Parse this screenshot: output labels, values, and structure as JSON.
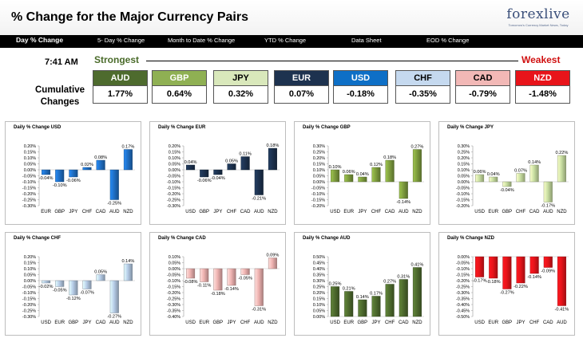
{
  "header": {
    "title": "% Change for the Major Currency Pairs",
    "logo_main": "forexlive",
    "logo_tagline": "Tomorrow's Currency Market News, Today"
  },
  "nav": {
    "items": [
      {
        "label": "Day % Change",
        "active": true
      },
      {
        "label": "5- Day % Change",
        "active": false
      },
      {
        "label": "Month to Date % Change",
        "active": false
      },
      {
        "label": "YTD % Change",
        "active": false
      },
      {
        "label": "Data Sheet",
        "active": false
      },
      {
        "label": "EOD % Change",
        "active": false
      }
    ]
  },
  "summary": {
    "time": "7:41 AM",
    "strongest_label": "Strongest",
    "weakest_label": "Weakest",
    "cumulative_label_line1": "Cumulative",
    "cumulative_label_line2": "Changes",
    "currencies": [
      {
        "code": "AUD",
        "value": "1.77%",
        "color": "#4e6b2e"
      },
      {
        "code": "GBP",
        "value": "0.64%",
        "color": "#8fb053"
      },
      {
        "code": "JPY",
        "value": "0.32%",
        "color": "#d9e8bb"
      },
      {
        "code": "EUR",
        "value": "0.07%",
        "color": "#1d324f"
      },
      {
        "code": "USD",
        "value": "-0.18%",
        "color": "#0e6fc6"
      },
      {
        "code": "CHF",
        "value": "-0.35%",
        "color": "#c5d9ef"
      },
      {
        "code": "CAD",
        "value": "-0.79%",
        "color": "#f2b8b6"
      },
      {
        "code": "NZD",
        "value": "-1.48%",
        "color": "#e8141a"
      }
    ]
  },
  "chart_data": [
    {
      "type": "bar",
      "title": "Daily % Change USD",
      "categories": [
        "EUR",
        "GBP",
        "JPY",
        "CHF",
        "CAD",
        "AUD",
        "NZD"
      ],
      "values": [
        -0.04,
        -0.1,
        -0.06,
        0.02,
        0.08,
        -0.25,
        0.17
      ],
      "labels": [
        "-0.04%",
        "-0.10%",
        "-0.06%",
        "0.02%",
        "0.08%",
        "-0.25%",
        "0.17%"
      ],
      "ylim": [
        -0.3,
        0.2
      ],
      "ticks": [
        0.2,
        0.15,
        0.1,
        0.05,
        0.0,
        -0.05,
        -0.1,
        -0.15,
        -0.2,
        -0.25,
        -0.3
      ],
      "tick_labels": [
        "0.20%",
        "0.15%",
        "0.10%",
        "0.05%",
        "0.00%",
        "-0.05%",
        "-0.10%",
        "-0.15%",
        "-0.20%",
        "-0.25%",
        "-0.30%"
      ],
      "color": "#1f6fc5"
    },
    {
      "type": "bar",
      "title": "Daily % Change EUR",
      "categories": [
        "USD",
        "GBP",
        "JPY",
        "CHF",
        "CAD",
        "AUD",
        "NZD"
      ],
      "values": [
        0.04,
        -0.06,
        -0.04,
        0.05,
        0.11,
        -0.21,
        0.18
      ],
      "labels": [
        "0.04%",
        "-0.06%",
        "-0.04%",
        "0.05%",
        "0.11%",
        "-0.21%",
        "0.18%"
      ],
      "ylim": [
        -0.3,
        0.2
      ],
      "ticks": [
        0.2,
        0.15,
        0.1,
        0.05,
        0.0,
        -0.05,
        -0.1,
        -0.15,
        -0.2,
        -0.25,
        -0.3
      ],
      "tick_labels": [
        "0.20%",
        "0.15%",
        "0.10%",
        "0.05%",
        "0.00%",
        "-0.05%",
        "-0.10%",
        "-0.15%",
        "-0.20%",
        "-0.25%",
        "-0.30%"
      ],
      "color": "#1d324f"
    },
    {
      "type": "bar",
      "title": "Daily % Change GBP",
      "categories": [
        "USD",
        "EUR",
        "JPY",
        "CHF",
        "CAD",
        "AUD",
        "NZD"
      ],
      "values": [
        0.1,
        0.06,
        0.04,
        0.12,
        0.18,
        -0.14,
        0.27
      ],
      "labels": [
        "0.10%",
        "0.06%",
        "0.04%",
        "0.12%",
        "0.18%",
        "-0.14%",
        "0.27%"
      ],
      "ylim": [
        -0.2,
        0.3
      ],
      "ticks": [
        0.3,
        0.25,
        0.2,
        0.15,
        0.1,
        0.05,
        0.0,
        -0.05,
        -0.1,
        -0.15,
        -0.2
      ],
      "tick_labels": [
        "0.30%",
        "0.25%",
        "0.20%",
        "0.15%",
        "0.10%",
        "0.05%",
        "0.00%",
        "-0.05%",
        "-0.10%",
        "-0.15%",
        "-0.20%"
      ],
      "color": "#7f9e3f"
    },
    {
      "type": "bar",
      "title": "Daily % Change JPY",
      "categories": [
        "USD",
        "EUR",
        "GBP",
        "CHF",
        "CAD",
        "AUD",
        "NZD"
      ],
      "values": [
        0.06,
        0.04,
        -0.04,
        0.07,
        0.14,
        -0.17,
        0.22
      ],
      "labels": [
        "0.06%",
        "0.04%",
        "-0.04%",
        "0.07%",
        "0.14%",
        "-0.17%",
        "0.22%"
      ],
      "ylim": [
        -0.2,
        0.3
      ],
      "ticks": [
        0.3,
        0.25,
        0.2,
        0.15,
        0.1,
        0.05,
        0.0,
        -0.05,
        -0.1,
        -0.15,
        -0.2
      ],
      "tick_labels": [
        "0.30%",
        "0.25%",
        "0.20%",
        "0.15%",
        "0.10%",
        "0.05%",
        "0.00%",
        "-0.05%",
        "-0.10%",
        "-0.15%",
        "-0.20%"
      ],
      "color": "#c9dfa2"
    },
    {
      "type": "bar",
      "title": "Daily % Change CHF",
      "categories": [
        "USD",
        "EUR",
        "GBP",
        "JPY",
        "CAD",
        "AUD",
        "NZD"
      ],
      "values": [
        -0.02,
        -0.05,
        -0.12,
        -0.07,
        0.05,
        -0.27,
        0.14
      ],
      "labels": [
        "-0.02%",
        "-0.05%",
        "-0.12%",
        "-0.07%",
        "0.05%",
        "-0.27%",
        "0.14%"
      ],
      "ylim": [
        -0.3,
        0.2
      ],
      "ticks": [
        0.2,
        0.15,
        0.1,
        0.05,
        0.0,
        -0.05,
        -0.1,
        -0.15,
        -0.2,
        -0.25,
        -0.3
      ],
      "tick_labels": [
        "0.20%",
        "0.15%",
        "0.10%",
        "0.05%",
        "0.00%",
        "-0.05%",
        "-0.10%",
        "-0.15%",
        "-0.20%",
        "-0.25%",
        "-0.30%"
      ],
      "color": "#b7cde8"
    },
    {
      "type": "bar",
      "title": "Daily % Change CAD",
      "categories": [
        "USD",
        "EUR",
        "GBP",
        "JPY",
        "CHF",
        "AUD",
        "NZD"
      ],
      "values": [
        -0.08,
        -0.11,
        -0.18,
        -0.14,
        -0.05,
        -0.31,
        0.09
      ],
      "labels": [
        "-0.08%",
        "-0.11%",
        "-0.18%",
        "-0.14%",
        "-0.05%",
        "-0.31%",
        "0.09%"
      ],
      "ylim": [
        -0.4,
        0.1
      ],
      "ticks": [
        0.1,
        0.05,
        0.0,
        -0.05,
        -0.1,
        -0.15,
        -0.2,
        -0.25,
        -0.3,
        -0.35,
        -0.4
      ],
      "tick_labels": [
        "0.10%",
        "0.05%",
        "0.00%",
        "-0.05%",
        "-0.10%",
        "-0.15%",
        "-0.20%",
        "-0.25%",
        "-0.30%",
        "-0.35%",
        "-0.40%"
      ],
      "color": "#efb3b1"
    },
    {
      "type": "bar",
      "title": "Daily % Change AUD",
      "categories": [
        "USD",
        "EUR",
        "GBP",
        "JPY",
        "CHF",
        "CAD",
        "NZD"
      ],
      "values": [
        0.25,
        0.21,
        0.14,
        0.17,
        0.27,
        0.31,
        0.41
      ],
      "labels": [
        "0.25%",
        "0.21%",
        "0.14%",
        "0.17%",
        "0.27%",
        "0.31%",
        "0.41%"
      ],
      "ylim": [
        0.0,
        0.5
      ],
      "ticks": [
        0.5,
        0.45,
        0.4,
        0.35,
        0.3,
        0.25,
        0.2,
        0.15,
        0.1,
        0.05,
        0.0
      ],
      "tick_labels": [
        "0.50%",
        "0.45%",
        "0.40%",
        "0.35%",
        "0.30%",
        "0.25%",
        "0.20%",
        "0.15%",
        "0.10%",
        "0.05%",
        "0.00%"
      ],
      "color": "#4e6b2e"
    },
    {
      "type": "bar",
      "title": "Daily % Change NZD",
      "categories": [
        "USD",
        "EUR",
        "GBP",
        "JPY",
        "CHF",
        "CAD",
        "AUD"
      ],
      "values": [
        -0.17,
        -0.18,
        -0.27,
        -0.22,
        -0.14,
        -0.09,
        -0.41
      ],
      "labels": [
        "-0.17%",
        "-0.18%",
        "-0.27%",
        "-0.22%",
        "-0.14%",
        "-0.09%",
        "-0.41%"
      ],
      "ylim": [
        -0.5,
        0.0
      ],
      "ticks": [
        0.0,
        -0.05,
        -0.1,
        -0.15,
        -0.2,
        -0.25,
        -0.3,
        -0.35,
        -0.4,
        -0.45,
        -0.5
      ],
      "tick_labels": [
        "0.00%",
        "-0.05%",
        "-0.10%",
        "-0.15%",
        "-0.20%",
        "-0.25%",
        "-0.30%",
        "-0.35%",
        "-0.40%",
        "-0.45%",
        "-0.50%"
      ],
      "color": "#e8141a"
    }
  ]
}
